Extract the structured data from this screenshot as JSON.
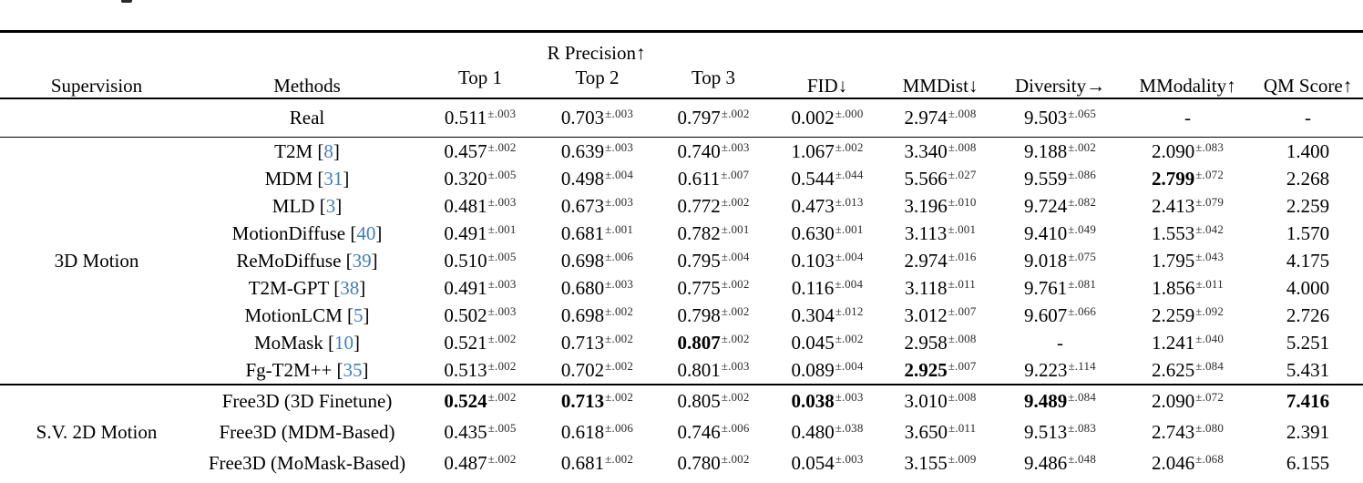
{
  "artifact_note": "tiny cropped glyph fragment at top edge",
  "colors": {
    "citation_blue": "#3e7dbf",
    "text": "#000000",
    "background": "#ffffff"
  },
  "table": {
    "header": {
      "supervision": "Supervision",
      "methods": "Methods",
      "r_precision": "R Precision↑",
      "top1": "Top 1",
      "top2": "Top 2",
      "top3": "Top 3",
      "fid": "FID↓",
      "mmdist": "MMDist↓",
      "diversity": "Diversity→",
      "mmodality": "MModality↑",
      "qm_score": "QM Score↑"
    },
    "real_row": {
      "method": "Real",
      "cells": [
        {
          "v": "0.511",
          "pm": ".003"
        },
        {
          "v": "0.703",
          "pm": ".003"
        },
        {
          "v": "0.797",
          "pm": ".002"
        },
        {
          "v": "0.002",
          "pm": ".000"
        },
        {
          "v": "2.974",
          "pm": ".008"
        },
        {
          "v": "9.503",
          "pm": ".065"
        },
        {
          "v": "-"
        },
        {
          "v": "-"
        }
      ]
    },
    "groups": [
      {
        "supervision": "3D Motion",
        "rows": [
          {
            "method": "T2M",
            "cite": "8",
            "cells": [
              {
                "v": "0.457",
                "pm": ".002"
              },
              {
                "v": "0.639",
                "pm": ".003"
              },
              {
                "v": "0.740",
                "pm": ".003"
              },
              {
                "v": "1.067",
                "pm": ".002"
              },
              {
                "v": "3.340",
                "pm": ".008"
              },
              {
                "v": "9.188",
                "pm": ".002"
              },
              {
                "v": "2.090",
                "pm": ".083"
              },
              {
                "v": "1.400"
              }
            ]
          },
          {
            "method": "MDM",
            "cite": "31",
            "cells": [
              {
                "v": "0.320",
                "pm": ".005"
              },
              {
                "v": "0.498",
                "pm": ".004"
              },
              {
                "v": "0.611",
                "pm": ".007"
              },
              {
                "v": "0.544",
                "pm": ".044"
              },
              {
                "v": "5.566",
                "pm": ".027"
              },
              {
                "v": "9.559",
                "pm": ".086"
              },
              {
                "v": "2.799",
                "pm": ".072",
                "bold": true
              },
              {
                "v": "2.268"
              }
            ]
          },
          {
            "method": "MLD",
            "cite": "3",
            "cells": [
              {
                "v": "0.481",
                "pm": ".003"
              },
              {
                "v": "0.673",
                "pm": ".003"
              },
              {
                "v": "0.772",
                "pm": ".002"
              },
              {
                "v": "0.473",
                "pm": ".013"
              },
              {
                "v": "3.196",
                "pm": ".010"
              },
              {
                "v": "9.724",
                "pm": ".082"
              },
              {
                "v": "2.413",
                "pm": ".079"
              },
              {
                "v": "2.259"
              }
            ]
          },
          {
            "method": "MotionDiffuse",
            "cite": "40",
            "cells": [
              {
                "v": "0.491",
                "pm": ".001"
              },
              {
                "v": "0.681",
                "pm": ".001"
              },
              {
                "v": "0.782",
                "pm": ".001"
              },
              {
                "v": "0.630",
                "pm": ".001"
              },
              {
                "v": "3.113",
                "pm": ".001"
              },
              {
                "v": "9.410",
                "pm": ".049"
              },
              {
                "v": "1.553",
                "pm": ".042"
              },
              {
                "v": "1.570"
              }
            ]
          },
          {
            "method": "ReMoDiffuse",
            "cite": "39",
            "cells": [
              {
                "v": "0.510",
                "pm": ".005"
              },
              {
                "v": "0.698",
                "pm": ".006"
              },
              {
                "v": "0.795",
                "pm": ".004"
              },
              {
                "v": "0.103",
                "pm": ".004"
              },
              {
                "v": "2.974",
                "pm": ".016"
              },
              {
                "v": "9.018",
                "pm": ".075"
              },
              {
                "v": "1.795",
                "pm": ".043"
              },
              {
                "v": "4.175"
              }
            ]
          },
          {
            "method": "T2M-GPT",
            "cite": "38",
            "cells": [
              {
                "v": "0.491",
                "pm": ".003"
              },
              {
                "v": "0.680",
                "pm": ".003"
              },
              {
                "v": "0.775",
                "pm": ".002"
              },
              {
                "v": "0.116",
                "pm": ".004"
              },
              {
                "v": "3.118",
                "pm": ".011"
              },
              {
                "v": "9.761",
                "pm": ".081"
              },
              {
                "v": "1.856",
                "pm": ".011"
              },
              {
                "v": "4.000"
              }
            ]
          },
          {
            "method": "MotionLCM",
            "cite": "5",
            "cells": [
              {
                "v": "0.502",
                "pm": ".003"
              },
              {
                "v": "0.698",
                "pm": ".002"
              },
              {
                "v": "0.798",
                "pm": ".002"
              },
              {
                "v": "0.304",
                "pm": ".012"
              },
              {
                "v": "3.012",
                "pm": ".007"
              },
              {
                "v": "9.607",
                "pm": ".066"
              },
              {
                "v": "2.259",
                "pm": ".092"
              },
              {
                "v": "2.726"
              }
            ]
          },
          {
            "method": "MoMask",
            "cite": "10",
            "cells": [
              {
                "v": "0.521",
                "pm": ".002"
              },
              {
                "v": "0.713",
                "pm": ".002"
              },
              {
                "v": "0.807",
                "pm": ".002",
                "bold": true
              },
              {
                "v": "0.045",
                "pm": ".002"
              },
              {
                "v": "2.958",
                "pm": ".008"
              },
              {
                "v": "-"
              },
              {
                "v": "1.241",
                "pm": ".040"
              },
              {
                "v": "5.251"
              }
            ]
          },
          {
            "method": "Fg-T2M++",
            "cite": "35",
            "cells": [
              {
                "v": "0.513",
                "pm": ".002"
              },
              {
                "v": "0.702",
                "pm": ".002"
              },
              {
                "v": "0.801",
                "pm": ".003"
              },
              {
                "v": "0.089",
                "pm": ".004"
              },
              {
                "v": "2.925",
                "pm": ".007",
                "bold": true
              },
              {
                "v": "9.223",
                "pm": ".114"
              },
              {
                "v": "2.625",
                "pm": ".084"
              },
              {
                "v": "5.431"
              }
            ]
          }
        ]
      },
      {
        "supervision": "S.V. 2D Motion",
        "rows": [
          {
            "method": "Free3D (3D Finetune)",
            "cells": [
              {
                "v": "0.524",
                "pm": ".002",
                "bold": true
              },
              {
                "v": "0.713",
                "pm": ".002",
                "bold": true
              },
              {
                "v": "0.805",
                "pm": ".002"
              },
              {
                "v": "0.038",
                "pm": ".003",
                "bold": true
              },
              {
                "v": "3.010",
                "pm": ".008"
              },
              {
                "v": "9.489",
                "pm": ".084",
                "bold": true
              },
              {
                "v": "2.090",
                "pm": ".072"
              },
              {
                "v": "7.416",
                "bold": true
              }
            ]
          },
          {
            "method": "Free3D (MDM-Based)",
            "cells": [
              {
                "v": "0.435",
                "pm": ".005"
              },
              {
                "v": "0.618",
                "pm": ".006"
              },
              {
                "v": "0.746",
                "pm": ".006"
              },
              {
                "v": "0.480",
                "pm": ".038"
              },
              {
                "v": "3.650",
                "pm": ".011"
              },
              {
                "v": "9.513",
                "pm": ".083"
              },
              {
                "v": "2.743",
                "pm": ".080"
              },
              {
                "v": "2.391"
              }
            ]
          },
          {
            "method": "Free3D (MoMask-Based)",
            "cells": [
              {
                "v": "0.487",
                "pm": ".002"
              },
              {
                "v": "0.681",
                "pm": ".002"
              },
              {
                "v": "0.780",
                "pm": ".002"
              },
              {
                "v": "0.054",
                "pm": ".003"
              },
              {
                "v": "3.155",
                "pm": ".009"
              },
              {
                "v": "9.486",
                "pm": ".048"
              },
              {
                "v": "2.046",
                "pm": ".068"
              },
              {
                "v": "6.155"
              }
            ]
          }
        ]
      }
    ]
  }
}
